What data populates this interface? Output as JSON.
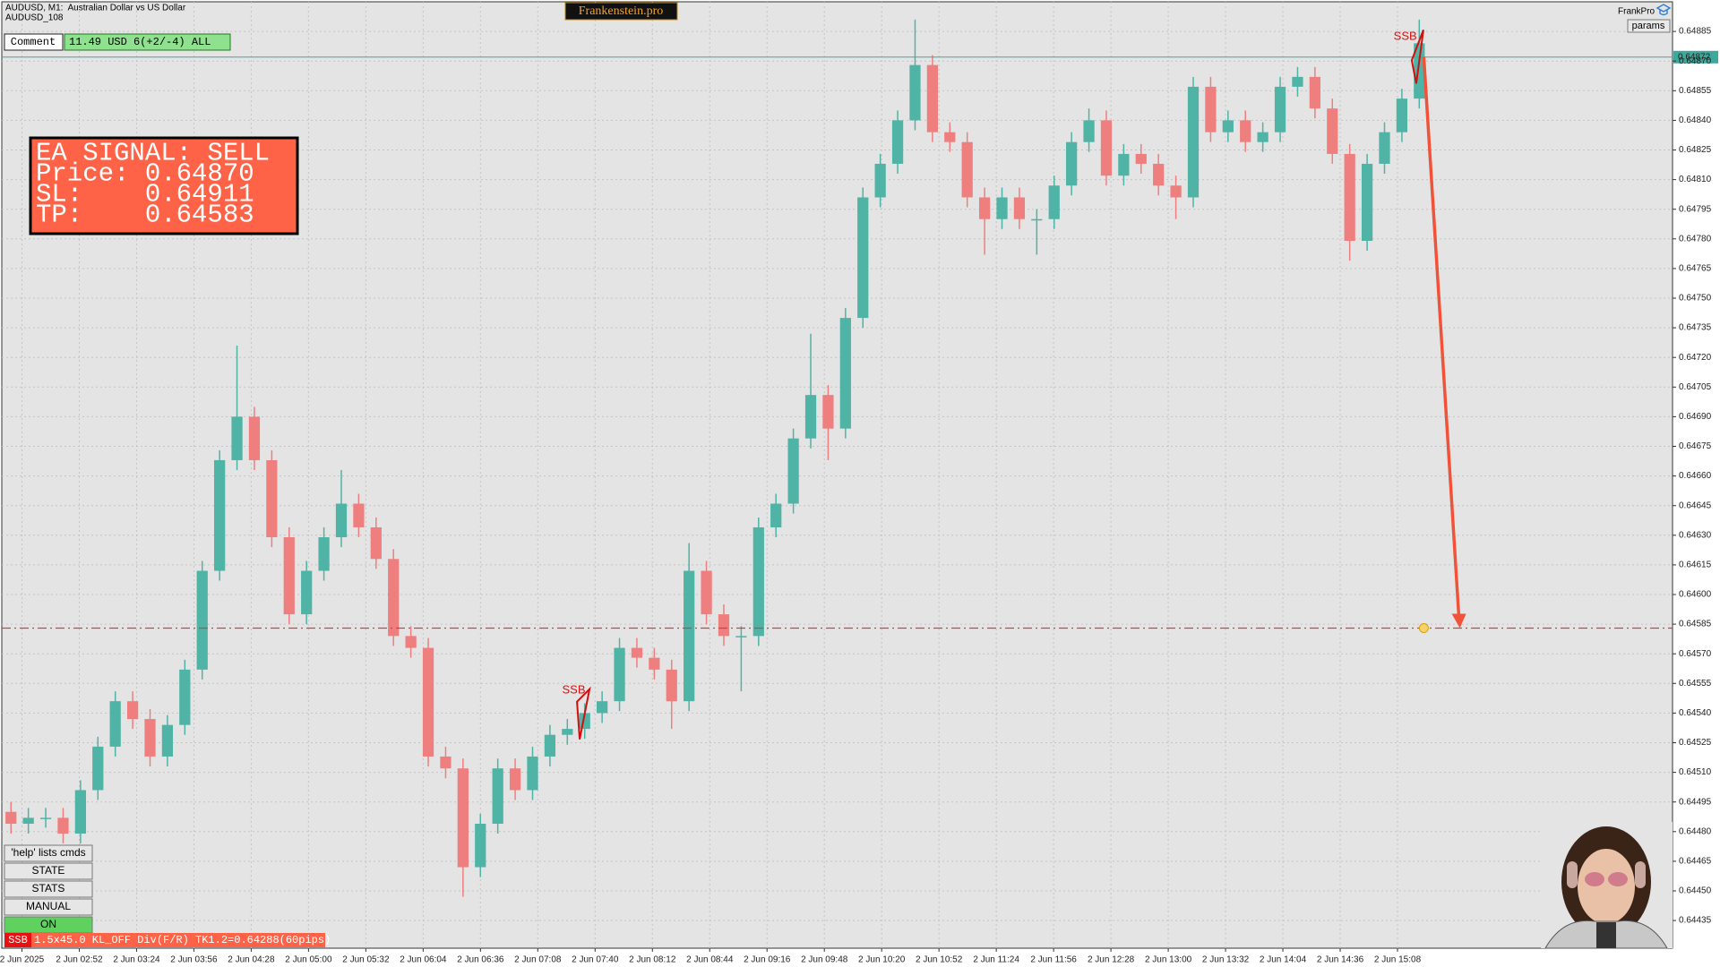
{
  "header": {
    "symbol": "AUDUSD, M1:  Australian Dollar vs US Dollar",
    "account": "AUDUSD_108",
    "brand": "Frankenstein.pro",
    "user": "FrankPro",
    "params_button": "params",
    "comment_button": "Comment",
    "comment_value": "11.49 USD 6(+2/-4) ALL"
  },
  "signal_box": {
    "lines": [
      "EA SIGNAL: SELL",
      "Price: 0.64870",
      "SL:    0.64911",
      "TP:    0.64583"
    ]
  },
  "buttons": [
    "'help' lists cmds",
    "STATE",
    "STATS",
    "MANUAL",
    "ON"
  ],
  "status": {
    "tag": "SSB",
    "text": "1.5x45.0 KL_OFF Div(F/R) TK1.2=0.64288(60pips)"
  },
  "chart_data": {
    "type": "candlestick",
    "xticks": [
      "2 Jun 2025",
      "2 Jun 02:52",
      "2 Jun 03:24",
      "2 Jun 03:56",
      "2 Jun 04:28",
      "2 Jun 05:00",
      "2 Jun 05:32",
      "2 Jun 06:04",
      "2 Jun 06:36",
      "2 Jun 07:08",
      "2 Jun 07:40",
      "2 Jun 08:12",
      "2 Jun 08:44",
      "2 Jun 09:16",
      "2 Jun 09:48",
      "2 Jun 10:20",
      "2 Jun 10:52",
      "2 Jun 11:24",
      "2 Jun 11:56",
      "2 Jun 12:28",
      "2 Jun 13:00",
      "2 Jun 13:32",
      "2 Jun 14:04",
      "2 Jun 14:36",
      "2 Jun 15:08"
    ],
    "open": [
      0.6449,
      0.64484,
      0.64487,
      0.64487,
      0.64479,
      0.64501,
      0.64523,
      0.64546,
      0.64537,
      0.64518,
      0.64534,
      0.64562,
      0.64612,
      0.64668,
      0.6469,
      0.64668,
      0.64629,
      0.6459,
      0.64612,
      0.64629,
      0.64646,
      0.64634,
      0.64618,
      0.64579,
      0.64573,
      0.64518,
      0.64512,
      0.64462,
      0.64484,
      0.64512,
      0.64501,
      0.64518,
      0.64529,
      0.64532,
      0.6454,
      0.64546,
      0.64573,
      0.64568,
      0.64562,
      0.64546,
      0.64612,
      0.6459,
      0.64579,
      0.64579,
      0.64634,
      0.64646,
      0.64679,
      0.64701,
      0.64684,
      0.6474,
      0.64801,
      0.64818,
      0.6484,
      0.64868,
      0.64834,
      0.64829,
      0.64801,
      0.6479,
      0.64801,
      0.6479,
      0.6479,
      0.64807,
      0.64829,
      0.6484,
      0.64812,
      0.64823,
      0.64818,
      0.64807,
      0.64801,
      0.64857,
      0.64834,
      0.6484,
      0.64829,
      0.64834,
      0.64857,
      0.64862,
      0.64846,
      0.64823,
      0.64779,
      0.64818,
      0.64834,
      0.64851
    ],
    "high": [
      0.64495,
      0.64492,
      0.64492,
      0.64492,
      0.64506,
      0.64528,
      0.64551,
      0.64551,
      0.64542,
      0.64539,
      0.64567,
      0.64617,
      0.64673,
      0.64726,
      0.64695,
      0.64673,
      0.64634,
      0.64617,
      0.64634,
      0.64663,
      0.64651,
      0.64639,
      0.64623,
      0.64584,
      0.64578,
      0.64523,
      0.64517,
      0.64489,
      0.64517,
      0.64517,
      0.64523,
      0.64534,
      0.64537,
      0.64545,
      0.64551,
      0.64578,
      0.64578,
      0.64573,
      0.64567,
      0.64626,
      0.64617,
      0.64595,
      0.64584,
      0.64639,
      0.64651,
      0.64684,
      0.64732,
      0.64706,
      0.64745,
      0.64806,
      0.64823,
      0.64845,
      0.64891,
      0.64873,
      0.64839,
      0.64834,
      0.64806,
      0.64806,
      0.64806,
      0.64795,
      0.64812,
      0.64834,
      0.64846,
      0.64845,
      0.64828,
      0.64828,
      0.64823,
      0.64812,
      0.64862,
      0.64862,
      0.64845,
      0.64845,
      0.64839,
      0.64862,
      0.64867,
      0.64867,
      0.64851,
      0.64828,
      0.64823,
      0.64839,
      0.64856,
      0.64891
    ],
    "low": [
      0.64479,
      0.64479,
      0.64482,
      0.64474,
      0.64474,
      0.64496,
      0.64518,
      0.64532,
      0.64513,
      0.64513,
      0.64529,
      0.64557,
      0.64607,
      0.64663,
      0.64663,
      0.64624,
      0.64585,
      0.64585,
      0.64607,
      0.64624,
      0.64629,
      0.64613,
      0.64574,
      0.64568,
      0.64513,
      0.64507,
      0.64447,
      0.64457,
      0.64479,
      0.64496,
      0.64496,
      0.64513,
      0.64524,
      0.64527,
      0.64535,
      0.64541,
      0.64563,
      0.64557,
      0.64532,
      0.64541,
      0.64585,
      0.64574,
      0.64551,
      0.64574,
      0.64629,
      0.64641,
      0.64674,
      0.64668,
      0.64679,
      0.64735,
      0.64796,
      0.64813,
      0.64835,
      0.64829,
      0.64824,
      0.64796,
      0.64772,
      0.64785,
      0.64785,
      0.64772,
      0.64785,
      0.64802,
      0.64824,
      0.64807,
      0.64807,
      0.64813,
      0.64802,
      0.6479,
      0.64796,
      0.64829,
      0.64829,
      0.64824,
      0.64824,
      0.64829,
      0.64852,
      0.64841,
      0.64818,
      0.64769,
      0.64774,
      0.64813,
      0.64829,
      0.64846
    ],
    "close": [
      0.64484,
      0.64487,
      0.64487,
      0.64479,
      0.64501,
      0.64523,
      0.64546,
      0.64537,
      0.64518,
      0.64534,
      0.64562,
      0.64612,
      0.64668,
      0.6469,
      0.64668,
      0.64629,
      0.6459,
      0.64612,
      0.64629,
      0.64646,
      0.64634,
      0.64618,
      0.64579,
      0.64573,
      0.64518,
      0.64512,
      0.64462,
      0.64484,
      0.64512,
      0.64501,
      0.64518,
      0.64529,
      0.64532,
      0.6454,
      0.64546,
      0.64573,
      0.64568,
      0.64562,
      0.64546,
      0.64612,
      0.6459,
      0.64579,
      0.64579,
      0.64634,
      0.64646,
      0.64679,
      0.64701,
      0.64684,
      0.6474,
      0.64801,
      0.64818,
      0.6484,
      0.64868,
      0.64834,
      0.64829,
      0.64801,
      0.6479,
      0.64801,
      0.6479,
      0.6479,
      0.64807,
      0.64829,
      0.6484,
      0.64812,
      0.64823,
      0.64818,
      0.64807,
      0.64801,
      0.64857,
      0.64834,
      0.6484,
      0.64829,
      0.64834,
      0.64857,
      0.64862,
      0.64846,
      0.64823,
      0.64779,
      0.64818,
      0.64834,
      0.64851,
      0.64879
    ],
    "up_color": "#4fb3a6",
    "down_color": "#ef7f7f",
    "ylim": [
      0.64421,
      0.649
    ],
    "yticks": [
      0.64885,
      {
        "value": 0.6487,
        "label": "0.64870"
      },
      0.64855,
      {
        "value": 0.6484,
        "label": "0.64840"
      },
      0.64825,
      {
        "value": 0.6481,
        "label": "0.64810"
      },
      0.64795,
      {
        "value": 0.6478,
        "label": "0.64780"
      },
      0.64765,
      {
        "value": 0.6475,
        "label": "0.64750"
      },
      0.64735,
      {
        "value": 0.6472,
        "label": "0.64720"
      },
      0.64705,
      {
        "value": 0.6469,
        "label": "0.64690"
      },
      0.64675,
      {
        "value": 0.6466,
        "label": "0.64660"
      },
      0.64645,
      {
        "value": 0.6463,
        "label": "0.64630"
      },
      0.64615,
      {
        "value": 0.646,
        "label": "0.64600"
      },
      0.64585,
      {
        "value": 0.6457,
        "label": "0.64570"
      },
      0.64555,
      {
        "value": 0.6454,
        "label": "0.64540"
      },
      0.64525,
      {
        "value": 0.6451,
        "label": "0.64510"
      },
      0.64495,
      {
        "value": 0.6448,
        "label": "0.64480"
      },
      0.64465,
      {
        "value": 0.6445,
        "label": "0.64450"
      },
      0.64435
    ],
    "grid": true,
    "current_price": 0.64872,
    "current_price_color": "#3fa89c",
    "tp_level": 0.64583,
    "tp_color": "#e53935",
    "signals": [
      "SSB",
      "SSB"
    ]
  }
}
